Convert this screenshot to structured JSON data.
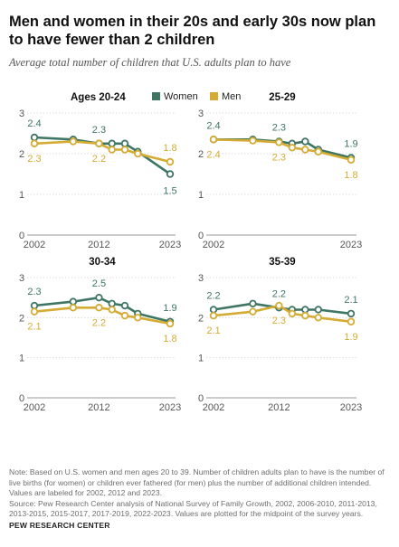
{
  "title": "Men and women in their 20s and early 30s now plan to have fewer than 2 children",
  "subtitle": "Average total number of children that U.S. adults plan to have",
  "note": "Note: Based on U.S. women and men ages 20 to 39. Number of children adults plan to have is the number of live births (for women) or children ever fathered (for men) plus the number of additional children intended. Values are labeled for 2002, 2012 and 2023.",
  "source": "Source: Pew Research Center analysis of National Survey of Family Growth, 2002, 2006-2010, 2011-2013, 2013-2015, 2015-2017, 2017-2019, 2022-2023. Values are plotted for the midpoint of the survey years.",
  "org": "PEW RESEARCH CENTER",
  "colors": {
    "women": "#3e7563",
    "men": "#d4ac34",
    "axis": "#999999",
    "grid": "#dddddd",
    "tick": "#555555"
  },
  "chart_data": [
    {
      "type": "line",
      "title": "Ages 20-24",
      "x": [
        2002,
        2008,
        2012,
        2014,
        2016,
        2018,
        2023
      ],
      "ylim": [
        0,
        3
      ],
      "yticks": [
        0,
        1,
        2,
        3
      ],
      "xticks": [
        2002,
        2012,
        2023
      ],
      "legend": "top",
      "series": [
        {
          "name": "Women",
          "values": [
            2.4,
            2.35,
            2.25,
            2.25,
            2.25,
            2.05,
            1.5
          ],
          "labels": [
            "2.4",
            "2.3",
            "1.5"
          ]
        },
        {
          "name": "Men",
          "values": [
            2.25,
            2.3,
            2.25,
            2.1,
            2.1,
            2.0,
            1.8
          ],
          "labels": [
            "2.3",
            "2.2",
            "1.8"
          ]
        }
      ]
    },
    {
      "type": "line",
      "title": "25-29",
      "x": [
        2002,
        2008,
        2012,
        2014,
        2016,
        2018,
        2023
      ],
      "ylim": [
        0,
        3
      ],
      "yticks": [
        0,
        1,
        2,
        3
      ],
      "xticks": [
        2002,
        2023
      ],
      "series": [
        {
          "name": "Women",
          "values": [
            2.35,
            2.35,
            2.3,
            2.25,
            2.3,
            2.1,
            1.9
          ],
          "labels": [
            "2.4",
            "2.3",
            "1.9"
          ]
        },
        {
          "name": "Men",
          "values": [
            2.35,
            2.32,
            2.28,
            2.15,
            2.1,
            2.05,
            1.85
          ],
          "labels": [
            "2.4",
            "2.3",
            "1.8"
          ]
        }
      ]
    },
    {
      "type": "line",
      "title": "30-34",
      "x": [
        2002,
        2008,
        2012,
        2014,
        2016,
        2018,
        2023
      ],
      "ylim": [
        0,
        3
      ],
      "yticks": [
        0,
        1,
        2,
        3
      ],
      "xticks": [
        2002,
        2012,
        2023
      ],
      "series": [
        {
          "name": "Women",
          "values": [
            2.3,
            2.4,
            2.5,
            2.35,
            2.3,
            2.1,
            1.9
          ],
          "labels": [
            "2.3",
            "2.5",
            "1.9"
          ]
        },
        {
          "name": "Men",
          "values": [
            2.15,
            2.25,
            2.25,
            2.2,
            2.05,
            2.0,
            1.85
          ],
          "labels": [
            "2.1",
            "2.2",
            "1.8"
          ]
        }
      ]
    },
    {
      "type": "line",
      "title": "35-39",
      "x": [
        2002,
        2008,
        2012,
        2014,
        2016,
        2018,
        2023
      ],
      "ylim": [
        0,
        3
      ],
      "yticks": [
        0,
        1,
        2,
        3
      ],
      "xticks": [
        2002,
        2012,
        2023
      ],
      "series": [
        {
          "name": "Women",
          "values": [
            2.2,
            2.35,
            2.25,
            2.2,
            2.2,
            2.2,
            2.1
          ],
          "labels": [
            "2.2",
            "2.2",
            "2.1"
          ]
        },
        {
          "name": "Men",
          "values": [
            2.05,
            2.15,
            2.3,
            2.1,
            2.05,
            2.0,
            1.9
          ],
          "labels": [
            "2.1",
            "2.3",
            "1.9"
          ]
        }
      ]
    }
  ]
}
